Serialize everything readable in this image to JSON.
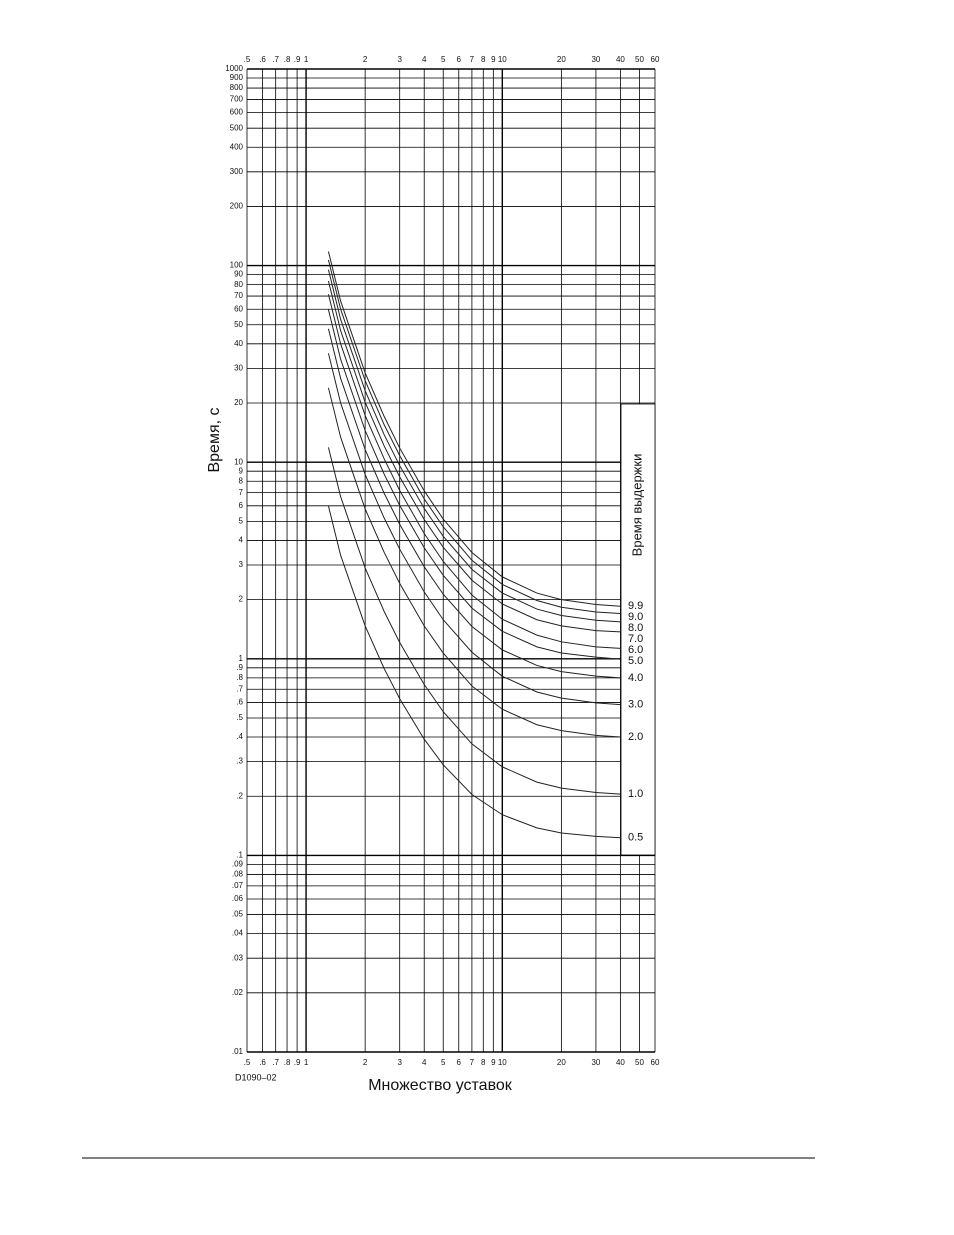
{
  "chart_data": {
    "type": "line",
    "x_label": "Множество уставок",
    "y_label": "Время, с",
    "legend_title": "Время выдержки",
    "annotation": "D1090–02",
    "xscale": "log",
    "yscale": "log",
    "grid": true,
    "xlim": [
      0.5,
      60
    ],
    "ylim": [
      0.01,
      1000
    ],
    "xticks": [
      {
        "value": 0.5,
        "label": ".5"
      },
      {
        "value": 0.6,
        "label": ".6"
      },
      {
        "value": 0.7,
        "label": ".7"
      },
      {
        "value": 0.8,
        "label": ".8"
      },
      {
        "value": 0.9,
        "label": ".9"
      },
      1,
      2,
      3,
      4,
      5,
      6,
      7,
      8,
      9,
      10,
      20,
      30,
      40,
      50,
      60
    ],
    "yticks": [
      1000,
      900,
      800,
      700,
      600,
      500,
      400,
      300,
      200,
      100,
      90,
      80,
      70,
      60,
      50,
      40,
      30,
      20,
      10,
      9,
      8,
      7,
      6,
      5,
      4,
      3,
      2,
      1,
      {
        "value": 0.9,
        "label": ".9"
      },
      {
        "value": 0.8,
        "label": ".8"
      },
      {
        "value": 0.7,
        "label": ".7"
      },
      {
        "value": 0.6,
        "label": ".6"
      },
      {
        "value": 0.5,
        "label": ".5"
      },
      {
        "value": 0.4,
        "label": ".4"
      },
      {
        "value": 0.3,
        "label": ".3"
      },
      {
        "value": 0.2,
        "label": ".2"
      },
      {
        "value": 0.1,
        "label": ".1"
      },
      {
        "value": 0.09,
        "label": ".09"
      },
      {
        "value": 0.08,
        "label": ".08"
      },
      {
        "value": 0.07,
        "label": ".07"
      },
      {
        "value": 0.06,
        "label": ".06"
      },
      {
        "value": 0.05,
        "label": ".05"
      },
      {
        "value": 0.04,
        "label": ".04"
      },
      {
        "value": 0.03,
        "label": ".03"
      },
      {
        "value": 0.02,
        "label": ".02"
      },
      {
        "value": 0.01,
        "label": ".01"
      }
    ],
    "x": [
      1.3,
      1.5,
      2,
      2.5,
      3,
      4,
      5,
      7,
      10,
      15,
      20,
      30,
      40
    ],
    "series": [
      {
        "name": "9.9",
        "color": "#222",
        "values": [
          118,
          66,
          28.5,
          17.1,
          11.8,
          7.15,
          5.14,
          3.47,
          2.61,
          2.16,
          2.0,
          1.89,
          1.85
        ]
      },
      {
        "name": "9.0",
        "color": "#222",
        "values": [
          107,
          60,
          26,
          15.5,
          10.8,
          6.51,
          4.69,
          3.17,
          2.39,
          1.98,
          1.83,
          1.73,
          1.7
        ]
      },
      {
        "name": "8.0",
        "color": "#222",
        "values": [
          95.4,
          53.3,
          23.1,
          13.8,
          9.6,
          5.82,
          4.2,
          2.85,
          2.16,
          1.79,
          1.66,
          1.57,
          1.54
        ]
      },
      {
        "name": "7.0",
        "color": "#222",
        "values": [
          83.5,
          46.7,
          20.2,
          12.1,
          8.42,
          5.11,
          3.69,
          2.51,
          1.9,
          1.58,
          1.47,
          1.39,
          1.37
        ]
      },
      {
        "name": "6.0",
        "color": "#222",
        "values": [
          71.5,
          40,
          17.3,
          10.4,
          7.18,
          4.34,
          3.13,
          2.11,
          1.59,
          1.32,
          1.22,
          1.15,
          1.13
        ]
      },
      {
        "name": "5.0",
        "color": "#222",
        "values": [
          59.7,
          33.4,
          14.5,
          8.69,
          6.03,
          3.67,
          2.66,
          1.81,
          1.38,
          1.15,
          1.07,
          1.02,
          0.995
        ]
      },
      {
        "name": "4.0",
        "color": "#222",
        "values": [
          47.7,
          26.7,
          11.6,
          6.95,
          4.83,
          2.94,
          2.13,
          1.46,
          1.11,
          0.925,
          0.861,
          0.816,
          0.8
        ]
      },
      {
        "name": "3.0",
        "color": "#222",
        "values": [
          35.8,
          20,
          8.67,
          5.2,
          3.61,
          2.19,
          1.58,
          1.08,
          0.815,
          0.678,
          0.631,
          0.597,
          0.585
        ]
      },
      {
        "name": "2.0",
        "color": "#222",
        "values": [
          23.9,
          13.4,
          5.79,
          3.48,
          2.42,
          1.47,
          1.07,
          0.727,
          0.554,
          0.462,
          0.431,
          0.408,
          0.4
        ]
      },
      {
        "name": "1.0",
        "color": "#222",
        "values": [
          11.9,
          6.68,
          2.9,
          1.74,
          1.21,
          0.74,
          0.538,
          0.369,
          0.282,
          0.236,
          0.22,
          0.209,
          0.205
        ]
      },
      {
        "name": "0.5",
        "color": "#222",
        "values": [
          5.99,
          3.36,
          1.47,
          0.892,
          0.626,
          0.39,
          0.289,
          0.204,
          0.161,
          0.138,
          0.13,
          0.125,
          0.123
        ]
      }
    ]
  }
}
